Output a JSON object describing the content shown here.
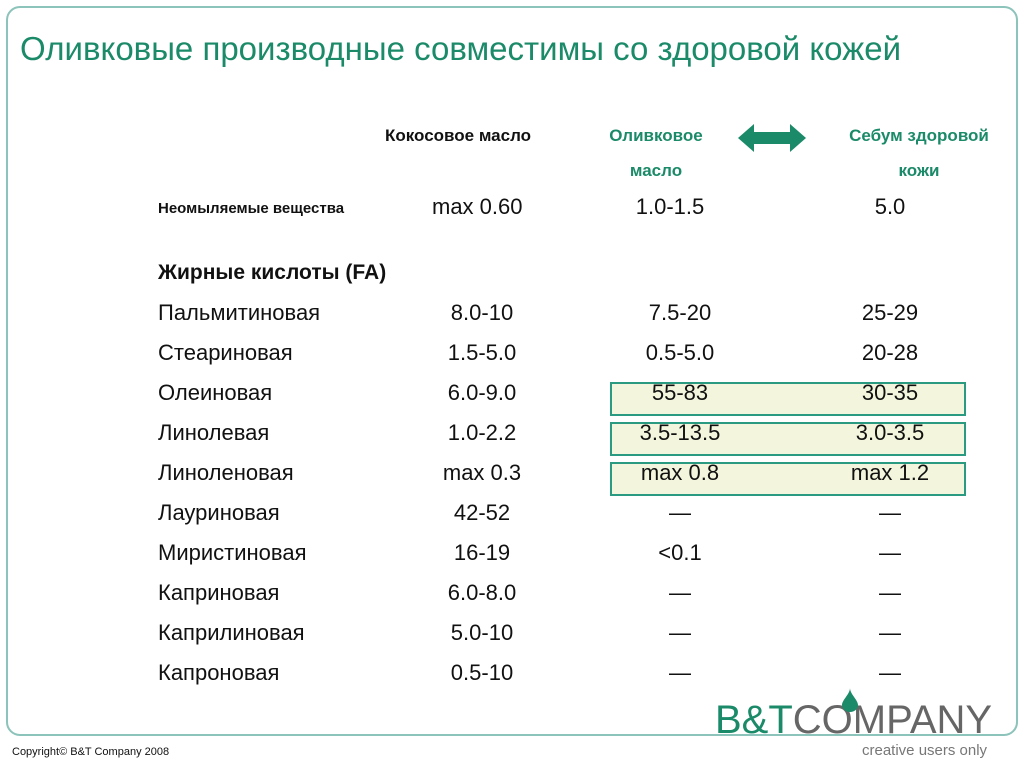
{
  "title": "Оливковые производные совместимы со здоровой кожей",
  "headers": {
    "coconut": "Кокосовое масло",
    "olive_line1": "Оливковое",
    "olive_line2": "масло",
    "sebum_line1": "Себум здоровой",
    "sebum_line2": "кожи"
  },
  "unsaponifiable": {
    "label": "Неомыляемые вещества",
    "coconut": "max 0.60",
    "olive": "1.0-1.5",
    "sebum": "5.0"
  },
  "fa_heading": "Жирные кислоты (FA)",
  "rows": [
    {
      "name": "Пальмитиновая",
      "coconut": "8.0-10",
      "olive": "7.5-20",
      "sebum": "25-29"
    },
    {
      "name": "Стеариновая",
      "coconut": "1.5-5.0",
      "olive": "0.5-5.0",
      "sebum": "20-28"
    },
    {
      "name": "Олеиновая",
      "coconut": "6.0-9.0",
      "olive": "55-83",
      "sebum": "30-35",
      "highlighted": true
    },
    {
      "name": "Линолевая",
      "coconut": "1.0-2.2",
      "olive": "3.5-13.5",
      "sebum": "3.0-3.5",
      "highlighted": true
    },
    {
      "name": "Линоленовая",
      "coconut": "max 0.3",
      "olive": "max 0.8",
      "sebum": "max 1.2",
      "highlighted": true
    },
    {
      "name": "Лауриновая",
      "coconut": "42-52",
      "olive": "—",
      "sebum": "—"
    },
    {
      "name": "Миристиновая",
      "coconut": "16-19",
      "olive": "<0.1",
      "sebum": "—"
    },
    {
      "name": "Каприновая",
      "coconut": "6.0-8.0",
      "olive": "—",
      "sebum": "—"
    },
    {
      "name": "Каприлиновая",
      "coconut": "5.0-10",
      "olive": "—",
      "sebum": "—"
    },
    {
      "name": "Капроновая",
      "coconut": "0.5-10",
      "olive": "—",
      "sebum": "—"
    }
  ],
  "logo": {
    "brand": "B&T",
    "company": "COMPANY",
    "tagline": "creative users only"
  },
  "copyright": "Copyright© B&T Company 2008",
  "colors": {
    "accent": "#1b8a68",
    "highlight": "#f3f6dc"
  }
}
